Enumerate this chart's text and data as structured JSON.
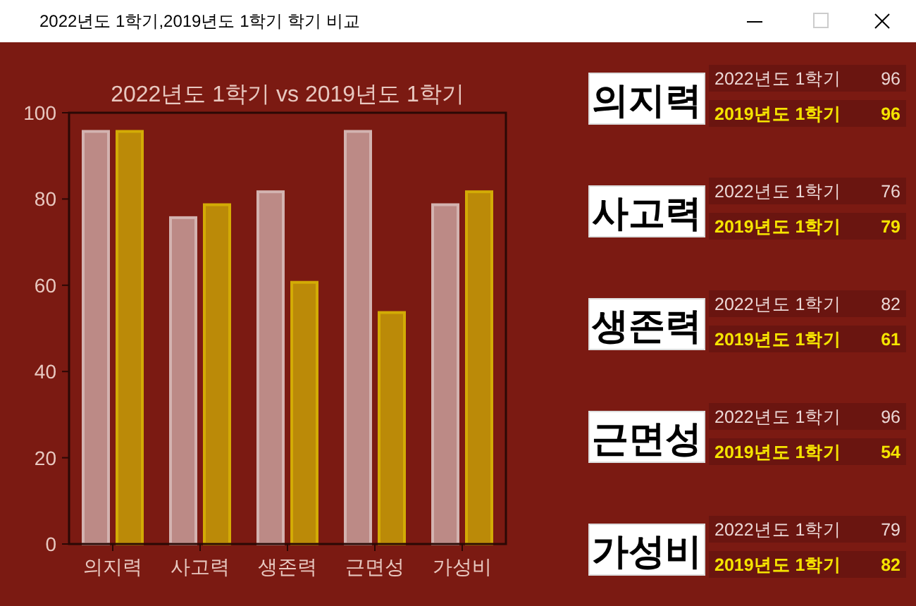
{
  "chart_data": [
    {
      "type": "bar",
      "title": "2022년도 1학기 vs 2019년도 1학기",
      "annotations": [
        "2022년도 1학기,2019년도 1학기 학기 비교"
      ],
      "categories": [
        "의지력",
        "사고력",
        "생존력",
        "근면성",
        "가성비"
      ],
      "series": [
        {
          "color": "#bc8a86",
          "values": [
            96,
            76,
            82,
            96,
            79
          ]
        },
        {
          "color": "#bb8a08",
          "values": [
            96,
            79,
            61,
            54,
            82
          ]
        }
      ],
      "ylim": [
        0,
        100
      ],
      "yticks": [
        0,
        20,
        40,
        60,
        80,
        100
      ]
    },
    {
      "type": "other",
      "categories": [
        "의지력",
        "사고력",
        "생존력",
        "근면성",
        "가성비"
      ],
      "series": [
        {
          "name": "2022년도 1학기",
          "values": [
            96,
            76,
            82,
            96,
            79
          ]
        },
        {
          "name": "2019년도 1학기",
          "values": [
            96,
            79,
            61,
            54,
            82
          ]
        }
      ],
      "data_labels": true
    }
  ]
}
